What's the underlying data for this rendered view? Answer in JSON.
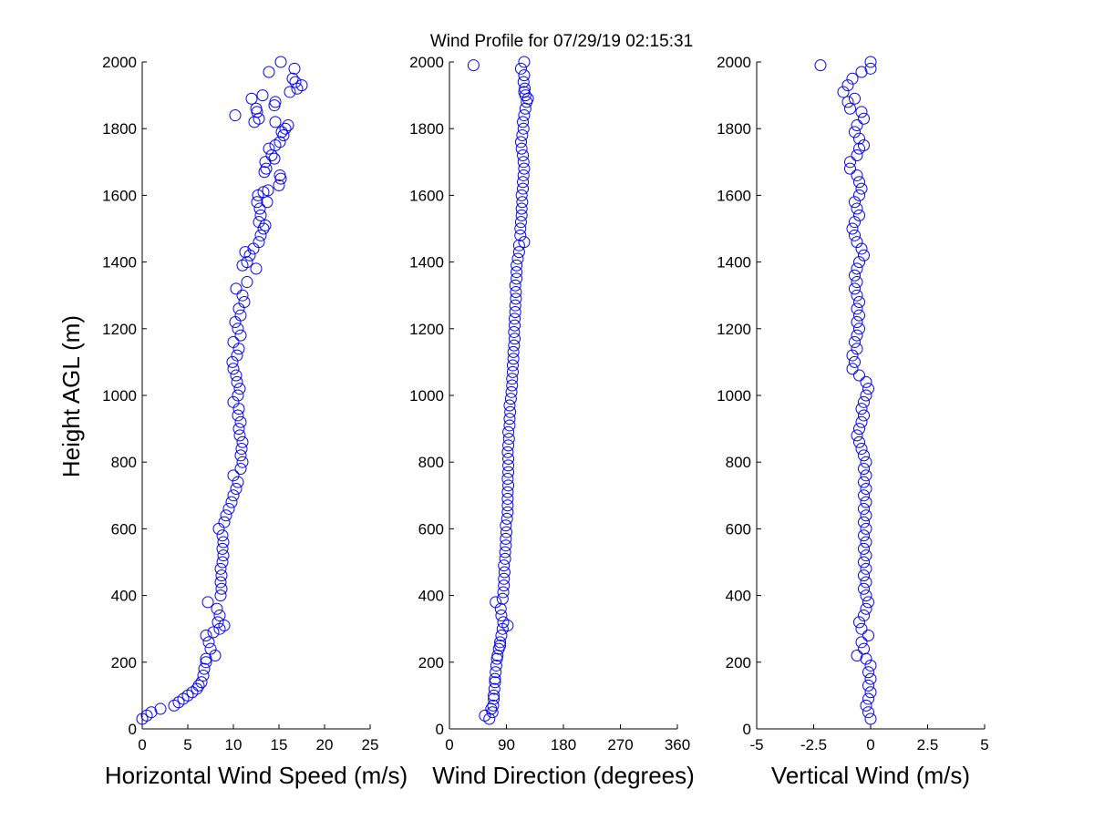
{
  "figure": {
    "title": "Wind Profile for  07/29/19 02:15:31",
    "ylabel": "Height AGL (m)",
    "marker_color": "#0000ff"
  },
  "chart_data": [
    {
      "type": "scatter",
      "xlabel": "Horizontal Wind Speed (m/s)",
      "ylabel": "Height AGL (m)",
      "xlim": [
        0,
        25
      ],
      "ylim": [
        0,
        2000
      ],
      "xticks": [
        "0",
        "5",
        "10",
        "15",
        "20",
        "25"
      ],
      "yticks": [
        "0",
        "200",
        "400",
        "600",
        "800",
        "1000",
        "1200",
        "1400",
        "1600",
        "1800",
        "2000"
      ],
      "xtick_values": [
        0,
        5,
        10,
        15,
        20,
        25
      ],
      "ytick_values": [
        0,
        200,
        400,
        600,
        800,
        1000,
        1200,
        1400,
        1600,
        1800,
        2000
      ],
      "grid": false,
      "points": [
        [
          0,
          30
        ],
        [
          0.5,
          40
        ],
        [
          1.0,
          50
        ],
        [
          2.0,
          60
        ],
        [
          3.5,
          70
        ],
        [
          4.0,
          80
        ],
        [
          4.5,
          90
        ],
        [
          5.0,
          100
        ],
        [
          5.5,
          110
        ],
        [
          6.0,
          120
        ],
        [
          6.2,
          130
        ],
        [
          6.5,
          140
        ],
        [
          6.7,
          160
        ],
        [
          6.8,
          180
        ],
        [
          7.0,
          200
        ],
        [
          7.0,
          210
        ],
        [
          7.5,
          240
        ],
        [
          7.3,
          260
        ],
        [
          7.0,
          280
        ],
        [
          8.0,
          220
        ],
        [
          7.8,
          290
        ],
        [
          8.5,
          300
        ],
        [
          9.0,
          310
        ],
        [
          8.3,
          320
        ],
        [
          8.5,
          340
        ],
        [
          8.2,
          360
        ],
        [
          7.2,
          380
        ],
        [
          8.6,
          400
        ],
        [
          8.7,
          420
        ],
        [
          8.6,
          440
        ],
        [
          8.7,
          460
        ],
        [
          8.6,
          480
        ],
        [
          8.8,
          500
        ],
        [
          8.9,
          520
        ],
        [
          8.8,
          540
        ],
        [
          8.9,
          560
        ],
        [
          8.8,
          580
        ],
        [
          8.4,
          600
        ],
        [
          9.0,
          620
        ],
        [
          9.2,
          640
        ],
        [
          9.5,
          660
        ],
        [
          9.8,
          680
        ],
        [
          10.0,
          700
        ],
        [
          10.3,
          720
        ],
        [
          10.5,
          740
        ],
        [
          10.0,
          760
        ],
        [
          10.8,
          780
        ],
        [
          11.0,
          800
        ],
        [
          10.8,
          820
        ],
        [
          10.9,
          840
        ],
        [
          11.0,
          860
        ],
        [
          10.7,
          880
        ],
        [
          10.6,
          900
        ],
        [
          10.8,
          920
        ],
        [
          10.5,
          940
        ],
        [
          10.6,
          960
        ],
        [
          10.0,
          980
        ],
        [
          10.5,
          1000
        ],
        [
          10.7,
          1020
        ],
        [
          10.4,
          1040
        ],
        [
          10.3,
          1060
        ],
        [
          10.0,
          1080
        ],
        [
          9.9,
          1100
        ],
        [
          10.4,
          1120
        ],
        [
          10.6,
          1140
        ],
        [
          10.0,
          1160
        ],
        [
          10.8,
          1180
        ],
        [
          10.5,
          1200
        ],
        [
          10.2,
          1220
        ],
        [
          10.8,
          1240
        ],
        [
          10.6,
          1260
        ],
        [
          11.2,
          1280
        ],
        [
          11.0,
          1300
        ],
        [
          10.3,
          1320
        ],
        [
          11.5,
          1340
        ],
        [
          12.5,
          1380
        ],
        [
          11.0,
          1390
        ],
        [
          11.5,
          1400
        ],
        [
          11.8,
          1420
        ],
        [
          11.3,
          1430
        ],
        [
          12.2,
          1440
        ],
        [
          12.8,
          1460
        ],
        [
          13.0,
          1480
        ],
        [
          13.3,
          1500
        ],
        [
          13.5,
          1510
        ],
        [
          12.8,
          1520
        ],
        [
          13.0,
          1540
        ],
        [
          12.9,
          1560
        ],
        [
          12.6,
          1580
        ],
        [
          13.7,
          1580
        ],
        [
          12.7,
          1600
        ],
        [
          13.3,
          1610
        ],
        [
          13.8,
          1615
        ],
        [
          15.0,
          1630
        ],
        [
          15.2,
          1650
        ],
        [
          15.1,
          1660
        ],
        [
          13.4,
          1670
        ],
        [
          13.6,
          1680
        ],
        [
          13.5,
          1700
        ],
        [
          14.5,
          1710
        ],
        [
          14.2,
          1720
        ],
        [
          13.9,
          1740
        ],
        [
          14.6,
          1750
        ],
        [
          15.1,
          1760
        ],
        [
          15.5,
          1780
        ],
        [
          15.3,
          1790
        ],
        [
          15.7,
          1800
        ],
        [
          16.0,
          1810
        ],
        [
          14.6,
          1820
        ],
        [
          12.3,
          1820
        ],
        [
          12.8,
          1830
        ],
        [
          10.2,
          1840
        ],
        [
          12.6,
          1850
        ],
        [
          12.5,
          1860
        ],
        [
          14.5,
          1870
        ],
        [
          14.6,
          1880
        ],
        [
          12.0,
          1890
        ],
        [
          13.2,
          1900
        ],
        [
          16.2,
          1910
        ],
        [
          17.0,
          1920
        ],
        [
          17.5,
          1930
        ],
        [
          16.8,
          1940
        ],
        [
          16.5,
          1950
        ],
        [
          13.9,
          1970
        ],
        [
          16.7,
          1980
        ],
        [
          15.2,
          2000
        ]
      ]
    },
    {
      "type": "scatter",
      "xlabel": "Wind Direction (degrees)",
      "xlim": [
        0,
        360
      ],
      "ylim": [
        0,
        2000
      ],
      "xticks": [
        "0",
        "90",
        "180",
        "270",
        "360"
      ],
      "yticks": [
        "0",
        "200",
        "400",
        "600",
        "800",
        "1000",
        "1200",
        "1400",
        "1600",
        "1800",
        "2000"
      ],
      "xtick_values": [
        0,
        90,
        180,
        270,
        360
      ],
      "ytick_values": [
        0,
        200,
        400,
        600,
        800,
        1000,
        1200,
        1400,
        1600,
        1800,
        2000
      ],
      "grid": false,
      "points": [
        [
          63,
          30
        ],
        [
          56,
          40
        ],
        [
          68,
          50
        ],
        [
          66,
          60
        ],
        [
          69,
          70
        ],
        [
          70,
          90
        ],
        [
          70,
          100
        ],
        [
          71,
          120
        ],
        [
          72,
          140
        ],
        [
          72,
          150
        ],
        [
          73,
          170
        ],
        [
          74,
          190
        ],
        [
          75,
          210
        ],
        [
          76,
          220
        ],
        [
          78,
          240
        ],
        [
          80,
          250
        ],
        [
          80,
          260
        ],
        [
          82,
          280
        ],
        [
          84,
          300
        ],
        [
          92,
          310
        ],
        [
          85,
          320
        ],
        [
          82,
          340
        ],
        [
          81,
          360
        ],
        [
          73,
          380
        ],
        [
          84,
          390
        ],
        [
          85,
          410
        ],
        [
          86,
          430
        ],
        [
          86,
          450
        ],
        [
          87,
          470
        ],
        [
          86,
          490
        ],
        [
          88,
          510
        ],
        [
          88,
          530
        ],
        [
          89,
          550
        ],
        [
          89,
          570
        ],
        [
          90,
          590
        ],
        [
          89,
          610
        ],
        [
          91,
          630
        ],
        [
          92,
          650
        ],
        [
          92,
          670
        ],
        [
          92,
          690
        ],
        [
          92,
          710
        ],
        [
          93,
          730
        ],
        [
          92,
          750
        ],
        [
          93,
          770
        ],
        [
          93,
          790
        ],
        [
          93,
          810
        ],
        [
          92,
          830
        ],
        [
          93,
          850
        ],
        [
          94,
          870
        ],
        [
          93,
          890
        ],
        [
          95,
          910
        ],
        [
          95,
          930
        ],
        [
          96,
          950
        ],
        [
          95,
          970
        ],
        [
          97,
          990
        ],
        [
          98,
          1010
        ],
        [
          99,
          1030
        ],
        [
          99,
          1050
        ],
        [
          100,
          1070
        ],
        [
          100,
          1090
        ],
        [
          101,
          1110
        ],
        [
          101,
          1130
        ],
        [
          102,
          1150
        ],
        [
          103,
          1170
        ],
        [
          102,
          1190
        ],
        [
          103,
          1210
        ],
        [
          103,
          1230
        ],
        [
          104,
          1250
        ],
        [
          104,
          1270
        ],
        [
          105,
          1290
        ],
        [
          105,
          1310
        ],
        [
          104,
          1330
        ],
        [
          106,
          1350
        ],
        [
          106,
          1370
        ],
        [
          106,
          1390
        ],
        [
          108,
          1410
        ],
        [
          110,
          1430
        ],
        [
          110,
          1450
        ],
        [
          118,
          1460
        ],
        [
          112,
          1480
        ],
        [
          112,
          1500
        ],
        [
          113,
          1520
        ],
        [
          114,
          1540
        ],
        [
          114,
          1560
        ],
        [
          115,
          1580
        ],
        [
          114,
          1600
        ],
        [
          116,
          1620
        ],
        [
          116,
          1640
        ],
        [
          117,
          1660
        ],
        [
          118,
          1680
        ],
        [
          117,
          1700
        ],
        [
          116,
          1720
        ],
        [
          114,
          1740
        ],
        [
          113,
          1760
        ],
        [
          115,
          1780
        ],
        [
          117,
          1800
        ],
        [
          116,
          1820
        ],
        [
          118,
          1840
        ],
        [
          120,
          1860
        ],
        [
          122,
          1880
        ],
        [
          124,
          1890
        ],
        [
          120,
          1900
        ],
        [
          118,
          1910
        ],
        [
          119,
          1920
        ],
        [
          117,
          1940
        ],
        [
          118,
          1960
        ],
        [
          113,
          1980
        ],
        [
          38,
          1990
        ],
        [
          118,
          2000
        ]
      ]
    },
    {
      "type": "scatter",
      "xlabel": "Vertical Wind (m/s)",
      "xlim": [
        -5,
        5
      ],
      "ylim": [
        0,
        2000
      ],
      "xticks": [
        "-5",
        "-2.5",
        "0",
        "2.5",
        "5"
      ],
      "yticks": [
        "0",
        "200",
        "400",
        "600",
        "800",
        "1000",
        "1200",
        "1400",
        "1600",
        "1800",
        "2000"
      ],
      "xtick_values": [
        -5,
        -2.5,
        0,
        2.5,
        5
      ],
      "ytick_values": [
        0,
        200,
        400,
        600,
        800,
        1000,
        1200,
        1400,
        1600,
        1800,
        2000
      ],
      "grid": false,
      "points": [
        [
          0,
          30
        ],
        [
          -0.1,
          50
        ],
        [
          -0.2,
          70
        ],
        [
          -0.1,
          90
        ],
        [
          0,
          110
        ],
        [
          -0.1,
          130
        ],
        [
          0,
          150
        ],
        [
          -0.1,
          170
        ],
        [
          0,
          190
        ],
        [
          -0.2,
          210
        ],
        [
          -0.6,
          220
        ],
        [
          -0.3,
          240
        ],
        [
          -0.4,
          260
        ],
        [
          -0.1,
          280
        ],
        [
          -0.4,
          300
        ],
        [
          -0.5,
          320
        ],
        [
          -0.3,
          340
        ],
        [
          -0.2,
          360
        ],
        [
          -0.1,
          380
        ],
        [
          -0.2,
          400
        ],
        [
          -0.3,
          420
        ],
        [
          -0.2,
          440
        ],
        [
          -0.3,
          460
        ],
        [
          -0.2,
          480
        ],
        [
          -0.3,
          500
        ],
        [
          -0.2,
          520
        ],
        [
          -0.3,
          540
        ],
        [
          -0.2,
          560
        ],
        [
          -0.3,
          580
        ],
        [
          -0.2,
          600
        ],
        [
          -0.3,
          620
        ],
        [
          -0.2,
          640
        ],
        [
          -0.3,
          660
        ],
        [
          -0.2,
          680
        ],
        [
          -0.3,
          700
        ],
        [
          -0.2,
          720
        ],
        [
          -0.3,
          740
        ],
        [
          -0.2,
          760
        ],
        [
          -0.3,
          780
        ],
        [
          -0.2,
          800
        ],
        [
          -0.3,
          820
        ],
        [
          -0.4,
          840
        ],
        [
          -0.5,
          860
        ],
        [
          -0.6,
          880
        ],
        [
          -0.5,
          900
        ],
        [
          -0.4,
          920
        ],
        [
          -0.3,
          940
        ],
        [
          -0.4,
          960
        ],
        [
          -0.3,
          980
        ],
        [
          -0.2,
          1000
        ],
        [
          -0.1,
          1020
        ],
        [
          -0.2,
          1040
        ],
        [
          -0.5,
          1060
        ],
        [
          -0.8,
          1080
        ],
        [
          -0.7,
          1100
        ],
        [
          -0.8,
          1120
        ],
        [
          -0.6,
          1140
        ],
        [
          -0.7,
          1160
        ],
        [
          -0.6,
          1180
        ],
        [
          -0.5,
          1200
        ],
        [
          -0.6,
          1220
        ],
        [
          -0.5,
          1240
        ],
        [
          -0.6,
          1260
        ],
        [
          -0.5,
          1280
        ],
        [
          -0.6,
          1300
        ],
        [
          -0.7,
          1320
        ],
        [
          -0.6,
          1340
        ],
        [
          -0.7,
          1360
        ],
        [
          -0.6,
          1380
        ],
        [
          -0.5,
          1400
        ],
        [
          -0.3,
          1420
        ],
        [
          -0.4,
          1440
        ],
        [
          -0.6,
          1460
        ],
        [
          -0.7,
          1480
        ],
        [
          -0.8,
          1500
        ],
        [
          -0.7,
          1520
        ],
        [
          -0.5,
          1540
        ],
        [
          -0.6,
          1560
        ],
        [
          -0.7,
          1580
        ],
        [
          -0.5,
          1600
        ],
        [
          -0.4,
          1620
        ],
        [
          -0.5,
          1640
        ],
        [
          -0.6,
          1660
        ],
        [
          -0.9,
          1680
        ],
        [
          -0.9,
          1700
        ],
        [
          -0.6,
          1720
        ],
        [
          -0.5,
          1740
        ],
        [
          -0.3,
          1750
        ],
        [
          -0.5,
          1770
        ],
        [
          -0.7,
          1790
        ],
        [
          -0.6,
          1810
        ],
        [
          -0.3,
          1830
        ],
        [
          -0.4,
          1850
        ],
        [
          -0.9,
          1860
        ],
        [
          -1.0,
          1880
        ],
        [
          -0.7,
          1890
        ],
        [
          -1.2,
          1910
        ],
        [
          -1.0,
          1930
        ],
        [
          -0.8,
          1950
        ],
        [
          -0.4,
          1970
        ],
        [
          0,
          1980
        ],
        [
          -2.2,
          1990
        ],
        [
          0,
          2000
        ]
      ]
    }
  ]
}
